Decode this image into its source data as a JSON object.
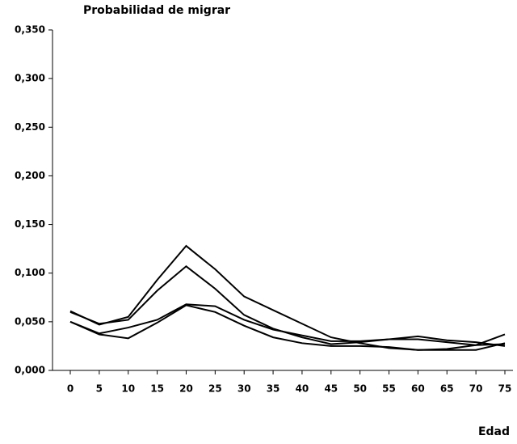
{
  "chart_data": {
    "type": "line",
    "title": "Probabilidad de migrar",
    "x_label": "Edad",
    "x": [
      0,
      5,
      10,
      15,
      20,
      25,
      30,
      35,
      40,
      45,
      50,
      55,
      60,
      65,
      70,
      75
    ],
    "series": [
      {
        "color": "#000000",
        "values": [
          0.061,
          0.047,
          0.055,
          0.093,
          0.128,
          0.104,
          0.076,
          0.062,
          0.048,
          0.034,
          0.028,
          0.023,
          0.021,
          0.022,
          0.026,
          0.037
        ]
      },
      {
        "color": "#000000",
        "values": [
          0.06,
          0.048,
          0.052,
          0.082,
          0.107,
          0.084,
          0.057,
          0.043,
          0.034,
          0.027,
          0.029,
          0.032,
          0.035,
          0.031,
          0.029,
          0.025
        ]
      },
      {
        "color": "#000000",
        "values": [
          0.05,
          0.038,
          0.044,
          0.052,
          0.068,
          0.066,
          0.052,
          0.042,
          0.036,
          0.03,
          0.03,
          0.032,
          0.032,
          0.029,
          0.026,
          0.027
        ]
      },
      {
        "color": "#000000",
        "values": [
          0.05,
          0.037,
          0.033,
          0.049,
          0.067,
          0.06,
          0.046,
          0.034,
          0.028,
          0.025,
          0.025,
          0.024,
          0.021,
          0.021,
          0.021,
          0.028
        ]
      }
    ],
    "ylim": [
      0,
      0.35
    ],
    "yticks": [
      {
        "value": 0,
        "label": "0,000"
      },
      {
        "value": 0.05,
        "label": "0,050"
      },
      {
        "value": 0.1,
        "label": "0,100"
      },
      {
        "value": 0.15,
        "label": "0,150"
      },
      {
        "value": 0.2,
        "label": "0,200"
      },
      {
        "value": 0.25,
        "label": "0,250"
      },
      {
        "value": 0.3,
        "label": "0,300"
      },
      {
        "value": 0.35,
        "label": "0,350"
      }
    ]
  }
}
